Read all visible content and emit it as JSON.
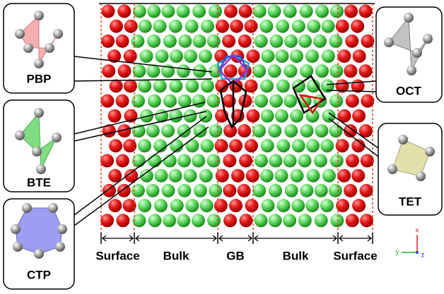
{
  "polyhedra": [
    {
      "label": "PBP"
    },
    {
      "label": "BTE"
    },
    {
      "label": "CTP"
    },
    {
      "label": "OCT"
    },
    {
      "label": "TET"
    }
  ],
  "regions": [
    "Surface",
    "Bulk",
    "GB",
    "Bulk",
    "Surface"
  ],
  "axes": {
    "x": "x",
    "y": "y",
    "z": "z"
  }
}
